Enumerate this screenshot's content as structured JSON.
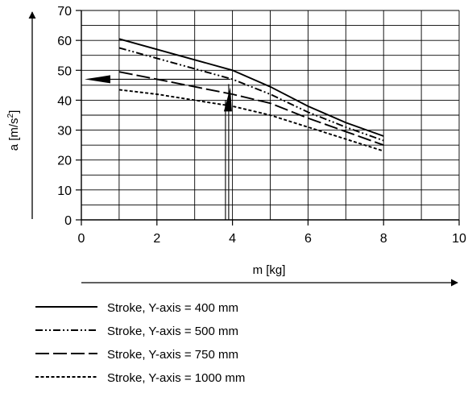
{
  "chart_data": {
    "type": "line",
    "title": "",
    "xlabel": "m [kg]",
    "ylabel": "a [m/s",
    "ylabel_sup": "2",
    "ylabel_close": "]",
    "xlim": [
      0,
      10
    ],
    "ylim": [
      0,
      70
    ],
    "x_ticks": [
      "0",
      "2",
      "4",
      "6",
      "8",
      "10"
    ],
    "y_ticks": [
      "0",
      "10",
      "20",
      "30",
      "40",
      "50",
      "60",
      "70"
    ],
    "grid": true,
    "legend_position": "bottom",
    "series": [
      {
        "name": "Stroke, Y-axis = 400 mm",
        "style": "solid",
        "x": [
          1,
          2,
          3,
          4,
          5,
          6,
          7,
          8
        ],
        "y": [
          60.5,
          57,
          53.5,
          50,
          44.5,
          38,
          32.5,
          28
        ]
      },
      {
        "name": "Stroke, Y-axis = 500 mm",
        "style": "dash-dot-dot",
        "x": [
          1,
          2,
          3,
          4,
          5,
          6,
          7,
          8
        ],
        "y": [
          57.5,
          54,
          50.5,
          47,
          42,
          36,
          31,
          26.5
        ]
      },
      {
        "name": "Stroke, Y-axis = 750 mm",
        "style": "long-dash",
        "x": [
          1,
          2,
          3,
          4,
          5,
          6,
          7,
          8
        ],
        "y": [
          49.5,
          47,
          44.5,
          42,
          39,
          34,
          29.5,
          25
        ]
      },
      {
        "name": "Stroke, Y-axis = 1000 mm",
        "style": "short-dash",
        "x": [
          1,
          2,
          3,
          4,
          5,
          6,
          7,
          8
        ],
        "y": [
          43.5,
          42,
          40,
          38,
          35,
          31,
          27,
          23
        ]
      }
    ],
    "annotation": {
      "reading_x": 3.9,
      "reading_y": 47
    },
    "colors": {
      "line": "#000000",
      "background": "#ffffff"
    }
  }
}
